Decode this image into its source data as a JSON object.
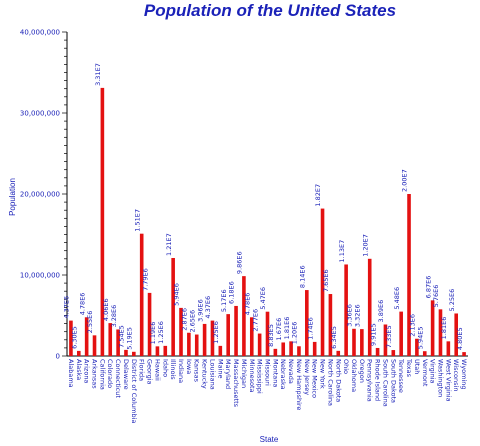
{
  "colors": {
    "bar": "#e41111",
    "text": "#1b22b8",
    "axis": "#000000"
  },
  "chart_data": {
    "type": "bar",
    "title": "Population of the United States",
    "xlabel": "State",
    "ylabel": "Population",
    "ylim": [
      0,
      40000000
    ],
    "yticks": [
      0,
      10000000,
      20000000,
      30000000,
      40000000
    ],
    "ytick_labels": [
      "0",
      "10,000,000",
      "20,000,000",
      "30,000,000",
      "40,000,000"
    ],
    "grid": false,
    "legend": "none",
    "categories": [
      "Alabama",
      "Alaska",
      "Arizona",
      "Arkansas",
      "California",
      "Colorado",
      "Connecticut",
      "Delaware",
      "District of Columbia",
      "Florida",
      "Georgia",
      "Hawaii",
      "Idaho",
      "Illinois",
      "Indiana",
      "Iowa",
      "Kansas",
      "Kentucky",
      "Louisiana",
      "Maine",
      "Maryland",
      "Massachusetts",
      "Michigan",
      "Minnesota",
      "Mississippi",
      "Missouri",
      "Montana",
      "Nebraska",
      "Nevada",
      "New Hampshire",
      "New Jersey",
      "New Mexico",
      "New York",
      "North Carolina",
      "North Dakota",
      "Ohio",
      "Oklahoma",
      "Oregon",
      "Pennsylvania",
      "Rhode Island",
      "South Carolina",
      "South Dakota",
      "Tennessee",
      "Texas",
      "Utah",
      "Vermont",
      "Virginia",
      "Washington",
      "West Virginia",
      "Wisconsin",
      "Wyoming"
    ],
    "values": [
      4370000,
      630000,
      4780000,
      2550000,
      33100000,
      4060000,
      3280000,
      754000,
      519000,
      15100000,
      7790000,
      1190000,
      1250000,
      12100000,
      5940000,
      2870000,
      2650000,
      3960000,
      4370000,
      1250000,
      5170000,
      6180000,
      9860000,
      4780000,
      2770000,
      5470000,
      883000,
      1670000,
      1810000,
      1200000,
      8140000,
      1740000,
      18200000,
      7650000,
      634000,
      11300000,
      3360000,
      3320000,
      12000000,
      991000,
      3890000,
      733000,
      5480000,
      20000000,
      2130000,
      594000,
      6870000,
      5760000,
      1810000,
      5250000,
      480000
    ],
    "data_labels": [
      "4.37E6",
      "6.30E5",
      "4.78E6",
      "2.55E6",
      "3.31E7",
      "4.06E6",
      "3.28E6",
      "7.54E5",
      "5.19E5",
      "1.51E7",
      "7.79E6",
      "1.19E6",
      "1.25E6",
      "1.21E7",
      "5.94E6",
      "2.87E6",
      "2.65E6",
      "3.96E6",
      "4.37E6",
      "1.25E6",
      "5.17E6",
      "6.18E6",
      "9.86E6",
      "4.78E6",
      "2.77E6",
      "5.47E6",
      "8.83E5",
      "1.67E6",
      "1.81E6",
      "1.20E6",
      "8.14E6",
      "1.74E6",
      "1.82E7",
      "7.65E6",
      "6.34E5",
      "1.13E7",
      "3.36E6",
      "3.32E6",
      "1.20E7",
      "9.91E5",
      "3.89E6",
      "7.33E5",
      "5.48E6",
      "2.00E7",
      "2.13E6",
      "5.94E5",
      "6.87E6",
      "5.76E6",
      "1.81E6",
      "5.25E6",
      "4.80E5"
    ]
  }
}
